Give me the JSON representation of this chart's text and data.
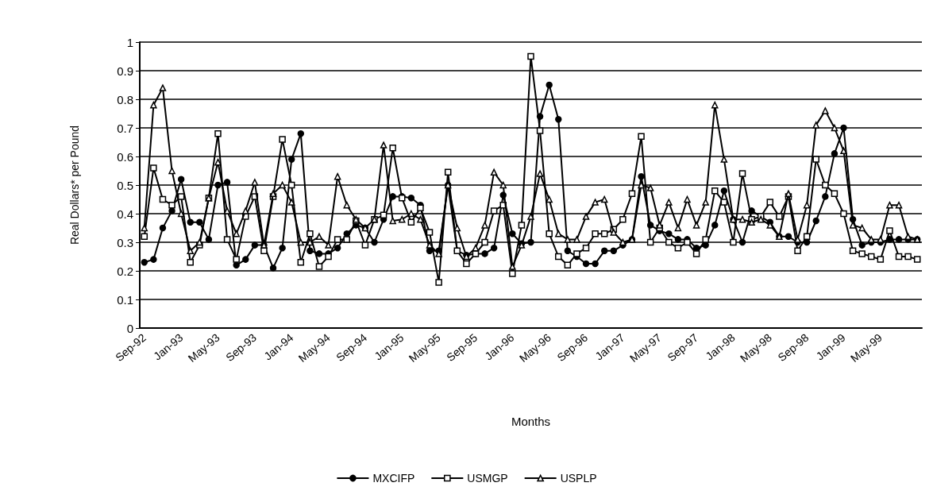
{
  "chart_data": {
    "type": "line",
    "xlabel": "Months",
    "ylabel": "Real Dollars* per Pound",
    "categories": [
      "Sep-92",
      null,
      null,
      null,
      "Jan-93",
      null,
      null,
      null,
      "May-93",
      null,
      null,
      null,
      "Sep-93",
      null,
      null,
      null,
      "Jan-94",
      null,
      null,
      null,
      "May-94",
      null,
      null,
      null,
      "Sep-94",
      null,
      null,
      null,
      "Jan-95",
      null,
      null,
      null,
      "May-95",
      null,
      null,
      null,
      "Sep-95",
      null,
      null,
      null,
      "Jan-96",
      null,
      null,
      null,
      "May-96",
      null,
      null,
      null,
      "Sep-96",
      null,
      null,
      null,
      "Jan-97",
      null,
      null,
      null,
      "May-97",
      null,
      null,
      null,
      "Sep-97",
      null,
      null,
      null,
      "Jan-98",
      null,
      null,
      null,
      "May-98",
      null,
      null,
      null,
      "Sep-98",
      null,
      null,
      null,
      "Jan-99",
      null,
      null,
      null,
      "May-99",
      null,
      null,
      null,
      null
    ],
    "series": [
      {
        "name": "MXCIFP",
        "color": "#000000",
        "marker": "circle",
        "values": [
          0.23,
          0.24,
          0.35,
          0.41,
          0.52,
          0.37,
          0.37,
          0.31,
          0.5,
          0.51,
          0.22,
          0.24,
          0.29,
          0.29,
          0.21,
          0.28,
          0.59,
          0.68,
          0.27,
          0.26,
          0.26,
          0.28,
          0.33,
          0.36,
          0.35,
          0.3,
          0.38,
          0.46,
          0.46,
          0.455,
          0.43,
          0.27,
          0.27,
          0.5,
          0.27,
          0.255,
          0.26,
          0.26,
          0.28,
          0.465,
          0.33,
          0.295,
          0.3,
          0.74,
          0.85,
          0.73,
          0.27,
          0.25,
          0.225,
          0.225,
          0.27,
          0.27,
          0.29,
          0.31,
          0.53,
          0.36,
          0.34,
          0.33,
          0.31,
          0.31,
          0.28,
          0.29,
          0.36,
          0.48,
          0.38,
          0.3,
          0.41,
          0.39,
          0.37,
          0.32,
          0.32,
          0.3,
          0.3,
          0.375,
          0.46,
          0.61,
          0.7,
          0.38,
          0.29,
          0.3,
          0.3,
          0.31,
          0.31,
          0.31,
          0.31
        ]
      },
      {
        "name": "USMGP",
        "color": "#000000",
        "marker": "square",
        "values": [
          0.32,
          0.56,
          0.45,
          0.43,
          0.46,
          0.23,
          0.29,
          0.455,
          0.68,
          0.31,
          0.24,
          0.39,
          0.46,
          0.27,
          0.46,
          0.66,
          0.5,
          0.23,
          0.33,
          0.215,
          0.25,
          0.31,
          0.31,
          0.375,
          0.29,
          0.38,
          0.395,
          0.63,
          0.455,
          0.37,
          0.42,
          0.335,
          0.16,
          0.545,
          0.27,
          0.225,
          0.26,
          0.3,
          0.41,
          0.43,
          0.19,
          0.36,
          0.95,
          0.69,
          0.33,
          0.25,
          0.22,
          0.26,
          0.28,
          0.33,
          0.33,
          0.345,
          0.38,
          0.47,
          0.67,
          0.3,
          0.35,
          0.3,
          0.28,
          0.3,
          0.26,
          0.31,
          0.48,
          0.44,
          0.3,
          0.54,
          0.38,
          0.39,
          0.44,
          0.39,
          0.46,
          0.27,
          0.32,
          0.59,
          0.5,
          0.47,
          0.4,
          0.27,
          0.26,
          0.25,
          0.24,
          0.34,
          0.25,
          0.25,
          0.24
        ]
      },
      {
        "name": "USPLP",
        "color": "#000000",
        "marker": "triangle",
        "values": [
          0.35,
          0.78,
          0.84,
          0.55,
          0.4,
          0.27,
          0.3,
          0.455,
          0.58,
          0.41,
          0.33,
          0.41,
          0.51,
          0.29,
          0.47,
          0.5,
          0.44,
          0.3,
          0.3,
          0.32,
          0.29,
          0.53,
          0.43,
          0.38,
          0.35,
          0.38,
          0.64,
          0.375,
          0.38,
          0.4,
          0.38,
          0.29,
          0.26,
          0.5,
          0.35,
          0.25,
          0.28,
          0.36,
          0.545,
          0.5,
          0.215,
          0.29,
          0.39,
          0.54,
          0.45,
          0.33,
          0.31,
          0.31,
          0.39,
          0.44,
          0.45,
          0.335,
          0.3,
          0.31,
          0.5,
          0.49,
          0.36,
          0.44,
          0.35,
          0.45,
          0.36,
          0.44,
          0.78,
          0.59,
          0.38,
          0.38,
          0.37,
          0.38,
          0.36,
          0.32,
          0.47,
          0.31,
          0.43,
          0.71,
          0.76,
          0.7,
          0.62,
          0.36,
          0.35,
          0.31,
          0.31,
          0.43,
          0.43,
          0.32,
          0.31
        ]
      }
    ],
    "ylim": [
      0,
      1
    ],
    "yticks": [
      0,
      0.1,
      0.2,
      0.3,
      0.4,
      0.5,
      0.6,
      0.7,
      0.8,
      0.9,
      1
    ],
    "grid": "y",
    "legend": "bottom",
    "line_style": "solid"
  }
}
